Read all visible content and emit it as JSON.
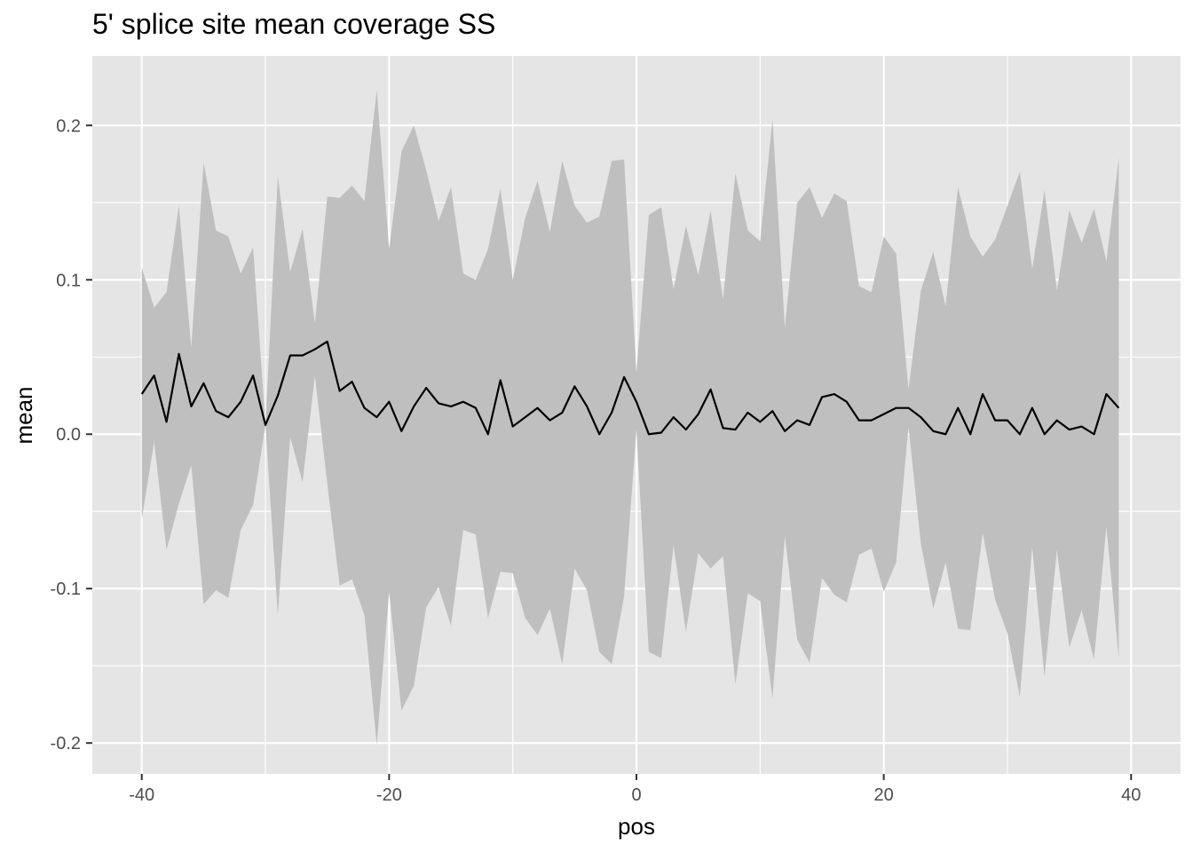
{
  "chart_data": {
    "type": "area",
    "title": "5' splice site mean coverage SS",
    "xlabel": "pos",
    "ylabel": "mean",
    "xlim": [
      -44,
      44
    ],
    "ylim": [
      -0.22,
      0.245
    ],
    "x_ticks": [
      -40,
      -20,
      0,
      20,
      40
    ],
    "x_tick_labels": [
      "-40",
      "-20",
      "0",
      "20",
      "40"
    ],
    "y_ticks": [
      -0.2,
      -0.1,
      0.0,
      0.1,
      0.2
    ],
    "y_tick_labels": [
      "-0.2",
      "-0.1",
      "0.0",
      "0.1",
      "0.2"
    ],
    "grid": true,
    "legend": "none",
    "colors": {
      "panel": "#e5e5e5",
      "grid": "#ffffff",
      "ribbon": "#bfbfbf",
      "line": "#000000",
      "tick": "#333333"
    },
    "x": [
      -40,
      -39,
      -38,
      -37,
      -36,
      -35,
      -34,
      -33,
      -32,
      -31,
      -30,
      -29,
      -28,
      -27,
      -26,
      -25,
      -24,
      -23,
      -22,
      -21,
      -20,
      -19,
      -18,
      -17,
      -16,
      -15,
      -14,
      -13,
      -12,
      -11,
      -10,
      -9,
      -8,
      -7,
      -6,
      -5,
      -4,
      -3,
      -2,
      -1,
      0,
      1,
      2,
      3,
      4,
      5,
      6,
      7,
      8,
      9,
      10,
      11,
      12,
      13,
      14,
      15,
      16,
      17,
      18,
      19,
      20,
      21,
      22,
      23,
      24,
      25,
      26,
      27,
      28,
      29,
      30,
      31,
      32,
      33,
      34,
      35,
      36,
      37,
      38,
      39
    ],
    "series": [
      {
        "values": [
          0.026,
          0.038,
          0.008,
          0.052,
          0.018,
          0.033,
          0.015,
          0.011,
          0.021,
          0.038,
          0.006,
          0.025,
          0.051,
          0.051,
          0.055,
          0.06,
          0.028,
          0.034,
          0.017,
          0.011,
          0.021,
          0.002,
          0.018,
          0.03,
          0.02,
          0.018,
          0.021,
          0.017,
          0.0,
          0.035,
          0.005,
          0.011,
          0.017,
          0.009,
          0.014,
          0.031,
          0.018,
          0.0,
          0.014,
          0.037,
          0.021,
          0.0,
          0.001,
          0.011,
          0.003,
          0.013,
          0.029,
          0.004,
          0.003,
          0.014,
          0.008,
          0.015,
          0.002,
          0.009,
          0.006,
          0.024,
          0.026,
          0.021,
          0.009,
          0.009,
          0.013,
          0.017,
          0.017,
          0.011,
          0.002,
          0.0,
          0.017,
          0.0,
          0.026,
          0.009,
          0.009,
          0.0,
          0.017,
          0.0,
          0.009,
          0.003,
          0.005,
          0.0,
          0.026,
          0.017
        ],
        "lower": [
          -0.055,
          -0.005,
          -0.075,
          -0.045,
          -0.02,
          -0.11,
          -0.101,
          -0.106,
          -0.062,
          -0.046,
          0.006,
          -0.117,
          -0.002,
          -0.031,
          0.038,
          -0.032,
          -0.098,
          -0.094,
          -0.117,
          -0.201,
          -0.102,
          -0.179,
          -0.163,
          -0.112,
          -0.099,
          -0.124,
          -0.062,
          -0.065,
          -0.119,
          -0.089,
          -0.09,
          -0.119,
          -0.13,
          -0.113,
          -0.149,
          -0.087,
          -0.101,
          -0.141,
          -0.149,
          -0.105,
          0.003,
          -0.141,
          -0.145,
          -0.072,
          -0.128,
          -0.077,
          -0.087,
          -0.079,
          -0.162,
          -0.103,
          -0.108,
          -0.171,
          -0.066,
          -0.133,
          -0.148,
          -0.093,
          -0.104,
          -0.109,
          -0.078,
          -0.074,
          -0.102,
          -0.083,
          0.005,
          -0.071,
          -0.113,
          -0.083,
          -0.126,
          -0.127,
          -0.064,
          -0.107,
          -0.129,
          -0.17,
          -0.073,
          -0.157,
          -0.075,
          -0.138,
          -0.114,
          -0.146,
          -0.06,
          -0.145
        ],
        "upper": [
          0.108,
          0.082,
          0.092,
          0.148,
          0.056,
          0.176,
          0.132,
          0.128,
          0.104,
          0.121,
          0.006,
          0.167,
          0.105,
          0.133,
          0.072,
          0.154,
          0.153,
          0.161,
          0.151,
          0.223,
          0.12,
          0.183,
          0.2,
          0.171,
          0.138,
          0.16,
          0.104,
          0.1,
          0.12,
          0.159,
          0.1,
          0.14,
          0.164,
          0.131,
          0.177,
          0.148,
          0.137,
          0.141,
          0.177,
          0.178,
          0.04,
          0.142,
          0.147,
          0.094,
          0.135,
          0.103,
          0.145,
          0.087,
          0.169,
          0.132,
          0.125,
          0.204,
          0.069,
          0.15,
          0.16,
          0.14,
          0.156,
          0.151,
          0.096,
          0.092,
          0.128,
          0.117,
          0.029,
          0.093,
          0.118,
          0.083,
          0.16,
          0.128,
          0.115,
          0.126,
          0.148,
          0.17,
          0.107,
          0.158,
          0.093,
          0.145,
          0.124,
          0.146,
          0.112,
          0.179
        ]
      }
    ]
  }
}
